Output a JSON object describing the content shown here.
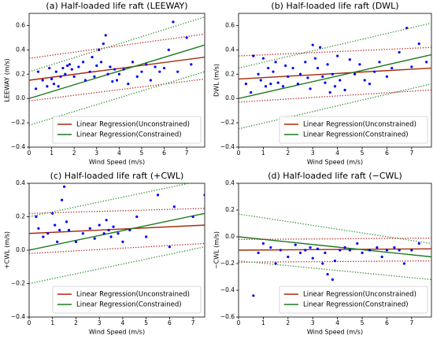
{
  "chart_data": [
    {
      "type": "scatter",
      "title": "(a) Half-loaded life raft (LEEWAY)",
      "xlabel": "Wind Speed (m/s)",
      "ylabel": "LEEWAY (m/s)",
      "xlim": [
        0,
        7.8
      ],
      "ylim": [
        -0.4,
        0.7
      ],
      "xticks": [
        0,
        1,
        2,
        3,
        4,
        5,
        6,
        7
      ],
      "yticks": [
        {
          "value": -0.4,
          "label": "−0.4"
        },
        {
          "value": -0.2,
          "label": "−0.2"
        },
        {
          "value": 0,
          "label": "0.0"
        },
        0.2,
        0.4,
        0.6
      ],
      "color": "#0000ff",
      "legend": "lower right",
      "x": [
        0.3,
        0.4,
        0.6,
        0.8,
        0.9,
        1.0,
        1.1,
        1.2,
        1.3,
        1.4,
        1.5,
        1.6,
        1.7,
        1.8,
        1.9,
        2.0,
        2.2,
        2.4,
        2.5,
        2.7,
        2.8,
        2.9,
        3.0,
        3.1,
        3.2,
        3.3,
        3.4,
        3.5,
        3.6,
        3.7,
        3.8,
        3.9,
        4.0,
        4.2,
        4.4,
        4.6,
        4.8,
        5.0,
        5.2,
        5.4,
        5.6,
        5.8,
        6.0,
        6.2,
        6.4,
        6.6,
        7.0,
        7.2
      ],
      "y": [
        0.08,
        0.22,
        0.15,
        0.1,
        0.25,
        0.16,
        0.12,
        0.22,
        0.1,
        0.18,
        0.25,
        0.2,
        0.27,
        0.28,
        0.24,
        0.18,
        0.26,
        0.3,
        0.15,
        0.22,
        0.34,
        0.18,
        0.27,
        0.4,
        0.3,
        0.45,
        0.52,
        0.2,
        0.26,
        0.14,
        0.24,
        0.15,
        0.2,
        0.24,
        0.12,
        0.3,
        0.18,
        0.22,
        0.28,
        0.15,
        0.26,
        0.22,
        0.25,
        0.4,
        0.63,
        0.22,
        0.5,
        0.28
      ],
      "series": [
        {
          "name": "Linear Regression(Unconstrained)",
          "color": "#a52a0a",
          "style": "solid",
          "x": [
            0,
            7.8
          ],
          "values": [
            0.15,
            0.34
          ]
        },
        {
          "name": "Linear Regression(Constrained)",
          "color": "#1e7a1e",
          "style": "solid",
          "x": [
            0,
            7.8
          ],
          "values": [
            0,
            0.44
          ]
        },
        {
          "color": "#b22222",
          "style": "dotted",
          "x": [
            0,
            7.8
          ],
          "values": [
            0.33,
            0.53
          ]
        },
        {
          "color": "#b22222",
          "style": "dotted",
          "x": [
            0,
            7.8
          ],
          "values": [
            -0.02,
            0.16
          ]
        },
        {
          "color": "#2e8b2e",
          "style": "dotted",
          "x": [
            0,
            7.8
          ],
          "values": [
            0.22,
            0.67
          ]
        },
        {
          "color": "#2e8b2e",
          "style": "dotted",
          "x": [
            0,
            7.8
          ],
          "values": [
            -0.22,
            0.22
          ]
        }
      ]
    },
    {
      "type": "scatter",
      "title": "(b) Half-loaded life raft (DWL)",
      "xlabel": "Wind Speed (m/s)",
      "ylabel": "DWL (m/s)",
      "xlim": [
        0,
        7.8
      ],
      "ylim": [
        -0.4,
        0.7
      ],
      "xticks": [
        0,
        1,
        2,
        3,
        4,
        5,
        6,
        7
      ],
      "yticks": [
        {
          "value": -0.4,
          "label": "−0.4"
        },
        {
          "value": -0.2,
          "label": "−0.2"
        },
        {
          "value": 0,
          "label": "0.0"
        },
        0.2,
        0.4,
        0.6
      ],
      "color": "#0000ff",
      "legend": "lower right",
      "x": [
        0.3,
        0.5,
        0.6,
        0.8,
        0.9,
        1.0,
        1.1,
        1.2,
        1.3,
        1.4,
        1.5,
        1.6,
        1.8,
        1.9,
        2.0,
        2.2,
        2.4,
        2.5,
        2.7,
        2.8,
        2.9,
        3.0,
        3.1,
        3.2,
        3.3,
        3.4,
        3.5,
        3.6,
        3.7,
        3.8,
        3.9,
        4.0,
        4.1,
        4.3,
        4.5,
        4.7,
        4.9,
        5.1,
        5.3,
        5.5,
        5.7,
        6.0,
        6.2,
        6.5,
        6.8,
        7.0,
        7.3,
        7.6
      ],
      "y": [
        0.12,
        0.05,
        0.35,
        0.2,
        0.15,
        0.33,
        0.1,
        0.25,
        0.12,
        0.22,
        0.3,
        0.13,
        0.1,
        0.27,
        0.18,
        0.25,
        0.12,
        0.2,
        0.3,
        0.17,
        0.08,
        0.44,
        0.33,
        0.25,
        0.42,
        0.18,
        0.13,
        0.28,
        0.05,
        0.2,
        0.1,
        0.35,
        0.15,
        0.07,
        0.32,
        0.2,
        0.28,
        0.15,
        0.12,
        0.22,
        0.3,
        0.18,
        0.25,
        0.38,
        0.58,
        0.26,
        0.45,
        0.3
      ],
      "series": [
        {
          "name": "Linear Regression(Unconstrained)",
          "color": "#a52a0a",
          "style": "solid",
          "x": [
            0,
            7.8
          ],
          "values": [
            0.16,
            0.25
          ]
        },
        {
          "name": "Linear Regression(Constrained)",
          "color": "#1e7a1e",
          "style": "solid",
          "x": [
            0,
            7.8
          ],
          "values": [
            0,
            0.36
          ]
        },
        {
          "color": "#b22222",
          "style": "dotted",
          "x": [
            0,
            7.8
          ],
          "values": [
            0.35,
            0.42
          ]
        },
        {
          "color": "#b22222",
          "style": "dotted",
          "x": [
            0,
            7.8
          ],
          "values": [
            -0.03,
            0.07
          ]
        },
        {
          "color": "#2e8b2e",
          "style": "dotted",
          "x": [
            0,
            7.8
          ],
          "values": [
            0.25,
            0.62
          ]
        },
        {
          "color": "#2e8b2e",
          "style": "dotted",
          "x": [
            0,
            7.8
          ],
          "values": [
            -0.25,
            0.12
          ]
        }
      ]
    },
    {
      "type": "scatter",
      "title": "(c) Half-loaded life raft (+CWL)",
      "xlabel": "Wind Speed (m/s)",
      "ylabel": "+CWL (m/s)",
      "xlim": [
        0,
        7.5
      ],
      "ylim": [
        -0.4,
        0.4
      ],
      "xticks": [
        0,
        1,
        2,
        3,
        4,
        5,
        6,
        7
      ],
      "yticks": [
        {
          "value": -0.4,
          "label": "−0.4"
        },
        {
          "value": -0.2,
          "label": "−0.2"
        },
        {
          "value": 0,
          "label": "0.0"
        },
        0.2,
        0.4
      ],
      "color": "#0000ff",
      "legend": "lower right",
      "x": [
        0.3,
        0.4,
        0.6,
        0.8,
        1.0,
        1.1,
        1.2,
        1.3,
        1.4,
        1.5,
        1.6,
        1.7,
        2.0,
        2.3,
        2.6,
        2.8,
        3.0,
        3.2,
        3.3,
        3.4,
        3.5,
        3.6,
        3.8,
        4.0,
        4.3,
        4.6,
        5.0,
        5.5,
        6.0,
        6.2,
        7.0,
        7.5
      ],
      "y": [
        0.2,
        0.13,
        0.08,
        0.1,
        0.22,
        0.15,
        0.05,
        0.12,
        0.3,
        0.38,
        0.17,
        0.12,
        0.05,
        0.1,
        0.13,
        0.07,
        0.15,
        0.1,
        0.18,
        0.12,
        0.08,
        0.14,
        0.1,
        0.05,
        0.12,
        0.2,
        0.08,
        0.33,
        0.02,
        0.26,
        0.2,
        0.33
      ],
      "series": [
        {
          "name": "Linear Regression(Unconstrained)",
          "color": "#a52a0a",
          "style": "solid",
          "x": [
            0,
            7.5
          ],
          "values": [
            0.1,
            0.15
          ]
        },
        {
          "name": "Linear Regression(Constrained)",
          "color": "#1e7a1e",
          "style": "solid",
          "x": [
            0,
            7.5
          ],
          "values": [
            0,
            0.22
          ]
        },
        {
          "color": "#b22222",
          "style": "dotted",
          "x": [
            0,
            7.5
          ],
          "values": [
            0.22,
            0.25
          ]
        },
        {
          "color": "#b22222",
          "style": "dotted",
          "x": [
            0,
            7.5
          ],
          "values": [
            -0.02,
            0.04
          ]
        },
        {
          "color": "#2e8b2e",
          "style": "dotted",
          "x": [
            0,
            7.5
          ],
          "values": [
            0.2,
            0.42
          ]
        },
        {
          "color": "#2e8b2e",
          "style": "dotted",
          "x": [
            0,
            7.5
          ],
          "values": [
            -0.2,
            0.02
          ]
        }
      ]
    },
    {
      "type": "scatter",
      "title": "(d) Half-loaded life raft (−CWL)",
      "xlabel": "Wind Speed (m/s)",
      "ylabel": "−CWL (m/s)",
      "xlim": [
        0,
        7.8
      ],
      "ylim": [
        -0.6,
        0.4
      ],
      "xticks": [
        0,
        1,
        2,
        3,
        4,
        5,
        6,
        7
      ],
      "yticks": [
        {
          "value": -0.6,
          "label": "−0.6"
        },
        {
          "value": -0.4,
          "label": "−0.4"
        },
        {
          "value": -0.2,
          "label": "−0.2"
        },
        {
          "value": 0,
          "label": "0.0"
        },
        0.2,
        0.4
      ],
      "color": "#0000ff",
      "legend": "lower right",
      "x": [
        0.6,
        0.8,
        1.0,
        1.3,
        1.5,
        1.7,
        2.0,
        2.3,
        2.5,
        2.7,
        2.9,
        3.0,
        3.2,
        3.4,
        3.5,
        3.6,
        3.8,
        3.9,
        4.1,
        4.3,
        4.5,
        4.8,
        5.0,
        5.3,
        5.6,
        5.8,
        6.0,
        6.3,
        6.5,
        6.7,
        7.0,
        7.3
      ],
      "y": [
        -0.44,
        -0.12,
        -0.05,
        -0.08,
        -0.2,
        -0.1,
        -0.15,
        -0.06,
        -0.12,
        -0.1,
        -0.08,
        -0.16,
        -0.09,
        -0.2,
        -0.12,
        -0.28,
        -0.32,
        -0.18,
        -0.1,
        -0.08,
        -0.1,
        -0.05,
        -0.12,
        -0.1,
        -0.08,
        -0.15,
        -0.1,
        -0.08,
        -0.1,
        -0.2,
        -0.1,
        -0.05
      ],
      "series": [
        {
          "name": "Linear Regression(Unconstrained)",
          "color": "#a52a0a",
          "style": "solid",
          "x": [
            0,
            7.8
          ],
          "values": [
            -0.1,
            -0.09
          ]
        },
        {
          "name": "Linear Regression(Constrained)",
          "color": "#1e7a1e",
          "style": "solid",
          "x": [
            0,
            7.8
          ],
          "values": [
            0,
            -0.15
          ]
        },
        {
          "color": "#b22222",
          "style": "dotted",
          "x": [
            0,
            7.8
          ],
          "values": [
            -0.02,
            -0.01
          ]
        },
        {
          "color": "#b22222",
          "style": "dotted",
          "x": [
            0,
            7.8
          ],
          "values": [
            -0.19,
            -0.18
          ]
        },
        {
          "color": "#2e8b2e",
          "style": "dotted",
          "x": [
            0,
            7.8
          ],
          "values": [
            0.17,
            -0.05
          ]
        },
        {
          "color": "#2e8b2e",
          "style": "dotted",
          "x": [
            0,
            7.8
          ],
          "values": [
            -0.18,
            -0.32
          ]
        }
      ]
    }
  ]
}
